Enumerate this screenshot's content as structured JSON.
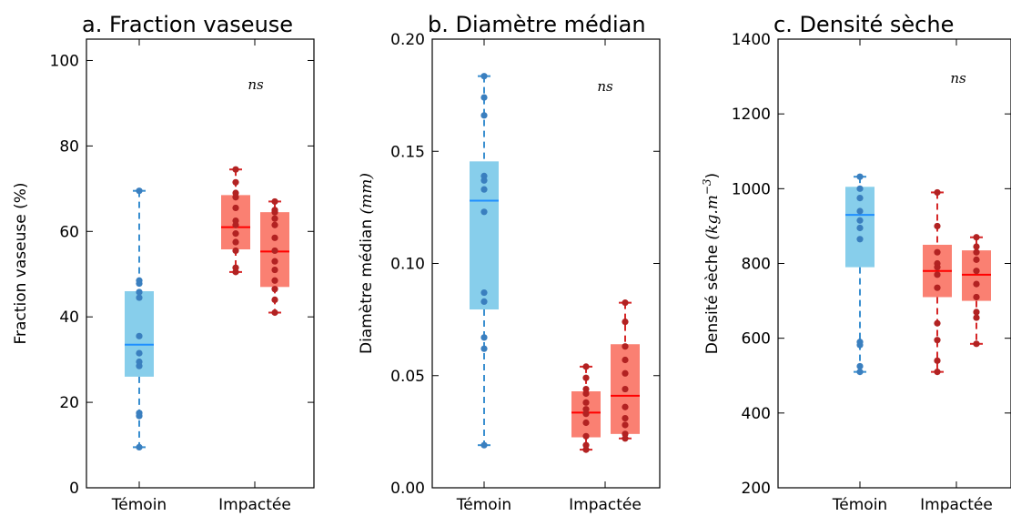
{
  "chart_data": [
    {
      "type": "box",
      "title": "a. Fraction vaseuse",
      "ylabel": "Fraction vaseuse (%)",
      "ylim": [
        0,
        105
      ],
      "yticks": [
        "0",
        "20",
        "40",
        "60",
        "80",
        "100"
      ],
      "yticks_values": [
        0,
        20,
        40,
        60,
        80,
        100
      ],
      "categories": [
        "Témoin",
        "Impactée"
      ],
      "annotation": "ns",
      "boxes": [
        {
          "group": "Témoin",
          "color": "#87CEEB",
          "median_color": "#1f8fff",
          "whisker_color": "#3a8fd0",
          "point_color": "#3a7fbf",
          "whislo": 9.5,
          "q1": 26,
          "med": 33.5,
          "q3": 46,
          "whishi": 69.5,
          "points": [
            9.5,
            16.8,
            17.5,
            28.5,
            29.5,
            31.5,
            35.5,
            44.5,
            45.8,
            47.8,
            48.5,
            69.5
          ]
        },
        {
          "group": "Impactée",
          "color": "#FA8072",
          "median_color": "#ff0000",
          "whisker_color": "#d62728",
          "point_color": "#b22222",
          "whislo": 50.5,
          "q1": 55.8,
          "med": 61,
          "q3": 68.5,
          "whishi": 74.5,
          "points": [
            50.5,
            51.5,
            55.5,
            57.5,
            59.5,
            61.5,
            62.5,
            65.5,
            68.0,
            69.0,
            71.5,
            74.5
          ]
        },
        {
          "group": "Impactée",
          "color": "#FA8072",
          "median_color": "#ff0000",
          "whisker_color": "#d62728",
          "point_color": "#b22222",
          "whislo": 41,
          "q1": 47,
          "med": 55.3,
          "q3": 64.5,
          "whishi": 67,
          "points": [
            41,
            44,
            46.5,
            48.5,
            51,
            53,
            55.5,
            58.5,
            61.5,
            63,
            64.5,
            65,
            67
          ]
        }
      ]
    },
    {
      "type": "box",
      "title": "b. Diamètre médian",
      "ylabel": "Diamètre médian ",
      "ylabel_unit": "(mm)",
      "ylim": [
        0,
        0.2
      ],
      "yticks": [
        "0.00",
        "0.05",
        "0.10",
        "0.15",
        "0.20"
      ],
      "yticks_values": [
        0,
        0.05,
        0.1,
        0.15,
        0.2
      ],
      "categories": [
        "Témoin",
        "Impactée"
      ],
      "annotation": "ns",
      "boxes": [
        {
          "group": "Témoin",
          "color": "#87CEEB",
          "median_color": "#1f8fff",
          "whisker_color": "#3a8fd0",
          "point_color": "#3a7fbf",
          "whislo": 0.019,
          "q1": 0.0795,
          "med": 0.128,
          "q3": 0.1455,
          "whishi": 0.1835,
          "points": [
            0.019,
            0.062,
            0.067,
            0.083,
            0.087,
            0.123,
            0.133,
            0.137,
            0.139,
            0.166,
            0.174,
            0.1835
          ]
        },
        {
          "group": "Impactée",
          "color": "#FA8072",
          "median_color": "#ff0000",
          "whisker_color": "#d62728",
          "point_color": "#b22222",
          "whislo": 0.017,
          "q1": 0.0225,
          "med": 0.0335,
          "q3": 0.043,
          "whishi": 0.054,
          "points": [
            0.017,
            0.019,
            0.023,
            0.029,
            0.033,
            0.035,
            0.038,
            0.042,
            0.044,
            0.049,
            0.054
          ]
        },
        {
          "group": "Impactée",
          "color": "#FA8072",
          "median_color": "#ff0000",
          "whisker_color": "#d62728",
          "point_color": "#b22222",
          "whislo": 0.022,
          "q1": 0.024,
          "med": 0.041,
          "q3": 0.064,
          "whishi": 0.0825,
          "points": [
            0.022,
            0.024,
            0.028,
            0.031,
            0.036,
            0.044,
            0.051,
            0.057,
            0.063,
            0.074,
            0.0825
          ]
        }
      ]
    },
    {
      "type": "box",
      "title": "c. Densité sèche",
      "ylabel": "Densité sèche ",
      "ylabel_unit": "(kg.m",
      "ylabel_sup": "−3",
      "ylabel_close": ")",
      "ylim": [
        200,
        1400
      ],
      "yticks": [
        "200",
        "400",
        "600",
        "800",
        "1000",
        "1200",
        "1400"
      ],
      "yticks_values": [
        200,
        400,
        600,
        800,
        1000,
        1200,
        1400
      ],
      "categories": [
        "Témoin",
        "Impactée"
      ],
      "annotation": "ns",
      "boxes": [
        {
          "group": "Témoin",
          "color": "#87CEEB",
          "median_color": "#1f8fff",
          "whisker_color": "#3a8fd0",
          "point_color": "#3a7fbf",
          "whislo": 510,
          "q1": 790,
          "med": 930,
          "q3": 1005,
          "whishi": 1032,
          "points": [
            510,
            525,
            582,
            590,
            865,
            895,
            915,
            940,
            975,
            1000,
            1032
          ]
        },
        {
          "group": "Impactée",
          "color": "#FA8072",
          "median_color": "#ff0000",
          "whisker_color": "#d62728",
          "point_color": "#b22222",
          "whislo": 510,
          "q1": 710,
          "med": 780,
          "q3": 850,
          "whishi": 990,
          "points": [
            510,
            540,
            595,
            640,
            735,
            770,
            790,
            800,
            830,
            900,
            990
          ]
        },
        {
          "group": "Impactée",
          "color": "#FA8072",
          "median_color": "#ff0000",
          "whisker_color": "#d62728",
          "point_color": "#b22222",
          "whislo": 585,
          "q1": 700,
          "med": 770,
          "q3": 835,
          "whishi": 870,
          "points": [
            585,
            655,
            670,
            710,
            745,
            780,
            810,
            830,
            845,
            870
          ]
        }
      ]
    }
  ]
}
